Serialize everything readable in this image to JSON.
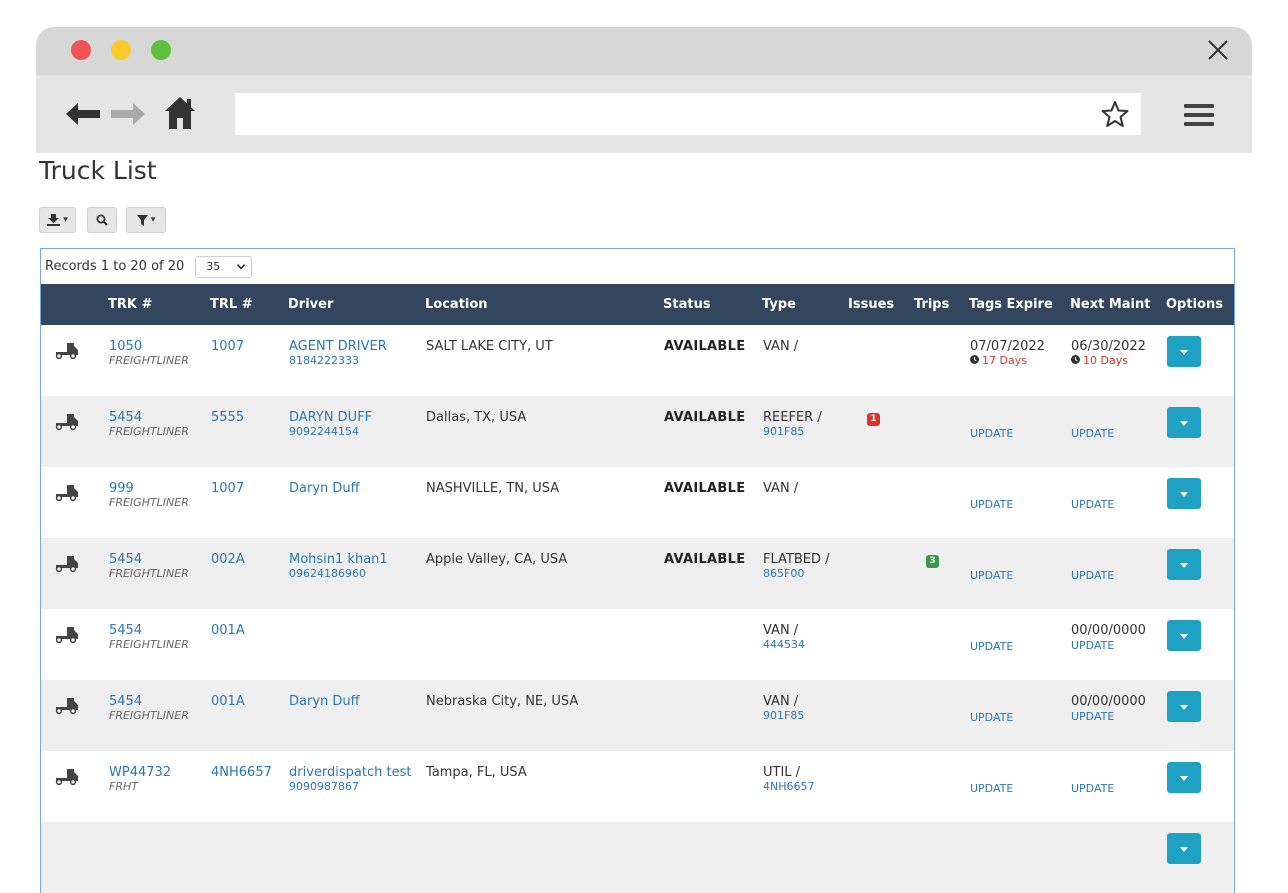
{
  "page": {
    "title": "Truck List",
    "records_label": "Records 1 to 20 of 20",
    "page_size": "35"
  },
  "columns": [
    "TRK #",
    "TRL #",
    "Driver",
    "Location",
    "Status",
    "Type",
    "Issues",
    "Trips",
    "Tags Expire",
    "Next Maint",
    "Options"
  ],
  "rows": [
    {
      "trk": "1050",
      "make": "FREIGHTLINER",
      "trl": "1007",
      "driver": "AGENT DRIVER",
      "phone": "8184222333",
      "location": "SALT LAKE CITY, UT",
      "status": "AVAILABLE",
      "type": "VAN /",
      "type_sub": "",
      "issues": "",
      "trips": "",
      "tags_date": "07/07/2022",
      "tags_days": "17 Days",
      "tags_update": "",
      "maint_date": "06/30/2022",
      "maint_days": "10 Days",
      "maint_update": ""
    },
    {
      "trk": "5454",
      "make": "FREIGHTLINER",
      "trl": "5555",
      "driver": "DARYN DUFF",
      "phone": "9092244154",
      "location": "Dallas, TX, USA",
      "status": "AVAILABLE",
      "type": "REEFER /",
      "type_sub": "901F85",
      "issues": "1",
      "trips": "",
      "tags_date": "",
      "tags_days": "",
      "tags_update": "UPDATE",
      "maint_date": "",
      "maint_days": "",
      "maint_update": "UPDATE"
    },
    {
      "trk": "999",
      "make": "FREIGHTLINER",
      "trl": "1007",
      "driver": "Daryn Duff",
      "phone": "",
      "location": "NASHVILLE, TN, USA",
      "status": "AVAILABLE",
      "type": "VAN /",
      "type_sub": "",
      "issues": "",
      "trips": "",
      "tags_date": "",
      "tags_days": "",
      "tags_update": "UPDATE",
      "maint_date": "",
      "maint_days": "",
      "maint_update": "UPDATE"
    },
    {
      "trk": "5454",
      "make": "FREIGHTLINER",
      "trl": "002A",
      "driver": "Mohsin1 khan1",
      "phone": "09624186960",
      "location": "Apple Valley, CA, USA",
      "status": "AVAILABLE",
      "type": "FLATBED /",
      "type_sub": "865F00",
      "issues": "",
      "trips": "3",
      "tags_date": "",
      "tags_days": "",
      "tags_update": "UPDATE",
      "maint_date": "",
      "maint_days": "",
      "maint_update": "UPDATE"
    },
    {
      "trk": "5454",
      "make": "FREIGHTLINER",
      "trl": "001A",
      "driver": "",
      "phone": "",
      "location": "",
      "status": "",
      "type": "VAN /",
      "type_sub": "444534",
      "issues": "",
      "trips": "",
      "tags_date": "",
      "tags_days": "",
      "tags_update": "UPDATE",
      "maint_date": "00/00/0000",
      "maint_days": "",
      "maint_update": "UPDATE"
    },
    {
      "trk": "5454",
      "make": "FREIGHTLINER",
      "trl": "001A",
      "driver": "Daryn Duff",
      "phone": "",
      "location": "Nebraska City, NE, USA",
      "status": "",
      "type": "VAN /",
      "type_sub": "901F85",
      "issues": "",
      "trips": "",
      "tags_date": "",
      "tags_days": "",
      "tags_update": "UPDATE",
      "maint_date": "00/00/0000",
      "maint_days": "",
      "maint_update": "UPDATE"
    },
    {
      "trk": "WP44732",
      "make": "FRHT",
      "trl": "4NH6657",
      "driver": "driverdispatch test",
      "phone": "9090987867",
      "location": "Tampa, FL, USA",
      "status": "",
      "type": "UTIL /",
      "type_sub": "4NH6657",
      "issues": "",
      "trips": "",
      "tags_date": "",
      "tags_days": "",
      "tags_update": "UPDATE",
      "maint_date": "",
      "maint_days": "",
      "maint_update": "UPDATE"
    },
    {
      "trk": "",
      "make": "",
      "trl": "",
      "driver": "",
      "phone": "",
      "location": "",
      "status": "",
      "type": "",
      "type_sub": "",
      "issues": "",
      "trips": "",
      "tags_date": "",
      "tags_days": "",
      "tags_update": "",
      "maint_date": "",
      "maint_days": "",
      "maint_update": ""
    }
  ],
  "colors": {
    "header_bg": "#34455e",
    "link": "#2a77b5",
    "options_button": "#1fa1c3",
    "danger": "#d9342b",
    "issue_badge": "#d9342b",
    "trips_badge": "#3a9a4a"
  },
  "icons": [
    "back-arrow-icon",
    "forward-arrow-icon",
    "home-icon",
    "star-icon",
    "hamburger-menu-icon",
    "close-icon",
    "download-icon",
    "search-icon",
    "filter-icon",
    "truck-icon",
    "clock-icon",
    "caret-down-icon"
  ]
}
